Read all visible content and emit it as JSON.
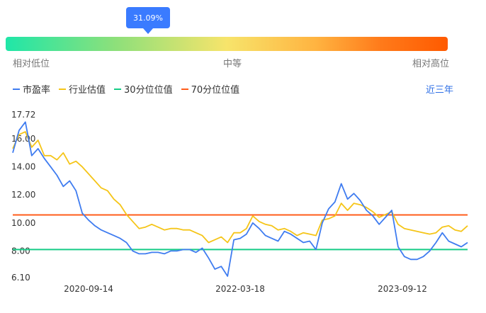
{
  "gauge": {
    "percentile_label": "31.09%",
    "percentile": 0.3109,
    "low_label": "相对低位",
    "mid_label": "中等",
    "high_label": "相对高位"
  },
  "period_selector": "近三年",
  "chart_data": {
    "type": "line",
    "x_labels": [
      "2020-09-14",
      "2022-03-18",
      "2023-09-12"
    ],
    "y_ticks": [
      "17.72",
      "16.00",
      "14.00",
      "12.00",
      "10.00",
      "8.00",
      "6.10"
    ],
    "ylim": [
      6.1,
      17.72
    ],
    "series": [
      {
        "name": "市盈率",
        "color": "#3f7cf0",
        "values": [
          15.0,
          16.6,
          17.2,
          14.8,
          15.3,
          14.6,
          14.0,
          13.4,
          12.6,
          13.0,
          12.3,
          10.7,
          10.2,
          9.8,
          9.5,
          9.3,
          9.1,
          8.9,
          8.6,
          8.0,
          7.8,
          7.8,
          7.9,
          7.9,
          7.8,
          8.0,
          8.0,
          8.1,
          8.1,
          7.9,
          8.2,
          7.5,
          6.7,
          6.9,
          6.2,
          8.8,
          8.9,
          9.2,
          10.0,
          9.6,
          9.1,
          8.9,
          8.7,
          9.4,
          9.2,
          8.9,
          8.6,
          8.7,
          8.1,
          10.0,
          11.0,
          11.5,
          12.8,
          11.7,
          12.1,
          11.6,
          10.9,
          10.5,
          9.9,
          10.4,
          10.9,
          8.3,
          7.6,
          7.4,
          7.4,
          7.6,
          8.0,
          8.6,
          9.3,
          8.7,
          8.5,
          8.3,
          8.6
        ]
      },
      {
        "name": "行业估值",
        "color": "#f5c518",
        "values": [
          15.3,
          16.3,
          16.5,
          15.4,
          15.9,
          14.8,
          14.8,
          14.5,
          15.0,
          14.2,
          14.4,
          14.0,
          13.5,
          13.0,
          12.5,
          12.3,
          11.7,
          11.3,
          10.6,
          10.1,
          9.6,
          9.7,
          9.9,
          9.7,
          9.5,
          9.6,
          9.6,
          9.5,
          9.5,
          9.3,
          9.1,
          8.6,
          8.8,
          9.0,
          8.6,
          9.3,
          9.3,
          9.6,
          10.5,
          10.1,
          9.9,
          9.8,
          9.5,
          9.6,
          9.4,
          9.1,
          9.3,
          9.2,
          9.1,
          10.2,
          10.3,
          10.5,
          11.4,
          10.9,
          11.4,
          11.3,
          11.1,
          10.8,
          10.4,
          10.6,
          10.8,
          9.9,
          9.6,
          9.5,
          9.4,
          9.3,
          9.2,
          9.3,
          9.7,
          9.8,
          9.5,
          9.4,
          9.8
        ]
      },
      {
        "name": "30分位位值",
        "color": "#16cc86",
        "constant": 8.1
      },
      {
        "name": "70分位位值",
        "color": "#ff5d1b",
        "constant": 10.57
      }
    ]
  }
}
